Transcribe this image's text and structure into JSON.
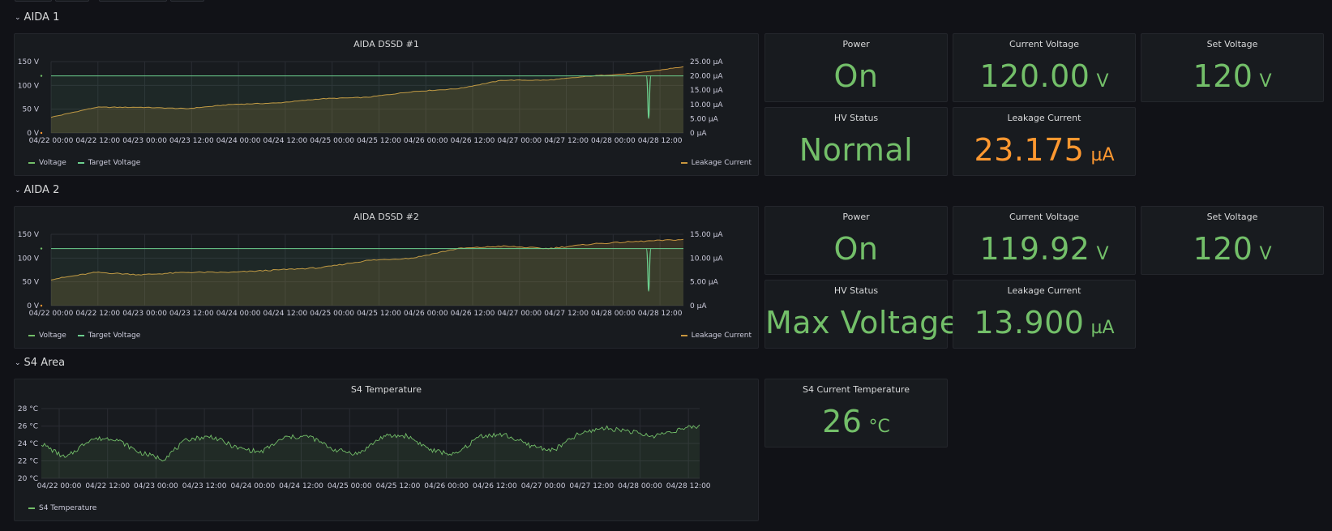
{
  "rows": [
    {
      "title": "AIDA 1"
    },
    {
      "title": "AIDA 2"
    },
    {
      "title": "S4 Area"
    }
  ],
  "x_ticks": [
    "04/22 00:00",
    "04/22 12:00",
    "04/23 00:00",
    "04/23 12:00",
    "04/24 00:00",
    "04/24 12:00",
    "04/25 00:00",
    "04/25 12:00",
    "04/26 00:00",
    "04/26 12:00",
    "04/27 00:00",
    "04/27 12:00",
    "04/28 00:00",
    "04/28 12:00"
  ],
  "aida1": {
    "graph_title": "AIDA DSSD #1",
    "y_left_ticks": [
      "150 V",
      "100 V",
      "50 V",
      "0 V"
    ],
    "y_right_ticks": [
      "25.00 µA",
      "20.00 µA",
      "15.00 µA",
      "10.00 µA",
      "5.00 µA",
      "0 µA"
    ],
    "legend": {
      "voltage": "Voltage",
      "target": "Target Voltage",
      "leakage": "Leakage Current"
    },
    "power": {
      "title": "Power",
      "value": "On"
    },
    "current_voltage": {
      "title": "Current Voltage",
      "value": "120.00",
      "unit": "V"
    },
    "set_voltage": {
      "title": "Set Voltage",
      "value": "120",
      "unit": "V"
    },
    "hv_status": {
      "title": "HV Status",
      "value": "Normal"
    },
    "leakage_current": {
      "title": "Leakage Current",
      "value": "23.175",
      "unit": "µA"
    }
  },
  "aida2": {
    "graph_title": "AIDA DSSD #2",
    "y_left_ticks": [
      "150 V",
      "100 V",
      "50 V",
      "0 V"
    ],
    "y_right_ticks": [
      "15.00 µA",
      "10.00 µA",
      "5.00 µA",
      "0 µA"
    ],
    "legend": {
      "voltage": "Voltage",
      "target": "Target Voltage",
      "leakage": "Leakage Current"
    },
    "power": {
      "title": "Power",
      "value": "On"
    },
    "current_voltage": {
      "title": "Current Voltage",
      "value": "119.92",
      "unit": "V"
    },
    "set_voltage": {
      "title": "Set Voltage",
      "value": "120",
      "unit": "V"
    },
    "hv_status": {
      "title": "HV Status",
      "value": "Max Voltage"
    },
    "leakage_current": {
      "title": "Leakage Current",
      "value": "13.900",
      "unit": "µA"
    }
  },
  "s4": {
    "graph_title": "S4 Temperature",
    "y_ticks": [
      "28 °C",
      "26 °C",
      "24 °C",
      "22 °C",
      "20 °C"
    ],
    "legend": {
      "temperature": "S4 Temperature"
    },
    "current_temp": {
      "title": "S4 Current Temperature",
      "value": "26",
      "unit": "°C"
    }
  },
  "colors": {
    "green": "#73bf69",
    "orange": "#ff9830",
    "target": "#6ccf8e",
    "leak": "#c8963e",
    "panel_bg": "#181b1f",
    "page_bg": "#111217"
  },
  "chart_data": [
    {
      "type": "line",
      "title": "AIDA DSSD #1",
      "x": [
        "04/22 00:00",
        "04/22 12:00",
        "04/23 00:00",
        "04/23 12:00",
        "04/24 00:00",
        "04/24 12:00",
        "04/25 00:00",
        "04/25 12:00",
        "04/26 00:00",
        "04/26 12:00",
        "04/27 00:00",
        "04/27 12:00",
        "04/28 00:00",
        "04/28 12:00",
        "04/28 18:00"
      ],
      "ylim_left": [
        0,
        150
      ],
      "ylim_right": [
        0,
        25
      ],
      "series": [
        {
          "name": "Target Voltage",
          "axis": "left",
          "values": [
            120,
            120,
            120,
            120,
            120,
            120,
            120,
            120,
            120,
            120,
            120,
            120,
            120,
            120,
            120
          ]
        },
        {
          "name": "Voltage",
          "axis": "left",
          "values": [
            120,
            120,
            120,
            120,
            120,
            120,
            120,
            120,
            120,
            120,
            120,
            120,
            120,
            120,
            120
          ]
        },
        {
          "name": "Leakage Current",
          "axis": "right",
          "values": [
            5.5,
            9.0,
            9.0,
            8.5,
            10.0,
            10.5,
            12.0,
            12.5,
            14.5,
            15.5,
            18.5,
            18.5,
            20.0,
            21.0,
            23.2
          ]
        }
      ]
    },
    {
      "type": "line",
      "title": "AIDA DSSD #2",
      "x": [
        "04/22 00:00",
        "04/22 12:00",
        "04/23 00:00",
        "04/23 12:00",
        "04/24 00:00",
        "04/24 12:00",
        "04/25 00:00",
        "04/25 12:00",
        "04/26 00:00",
        "04/26 12:00",
        "04/27 00:00",
        "04/27 12:00",
        "04/28 00:00",
        "04/28 12:00",
        "04/28 18:00"
      ],
      "ylim_left": [
        0,
        150
      ],
      "ylim_right": [
        0,
        15
      ],
      "series": [
        {
          "name": "Target Voltage",
          "axis": "left",
          "values": [
            120,
            120,
            120,
            120,
            120,
            120,
            120,
            120,
            120,
            120,
            120,
            120,
            120,
            120,
            120
          ]
        },
        {
          "name": "Voltage",
          "axis": "left",
          "values": [
            120,
            120,
            120,
            120,
            120,
            120,
            120,
            120,
            120,
            120,
            120,
            120,
            120,
            120,
            120
          ]
        },
        {
          "name": "Leakage Current",
          "axis": "right",
          "values": [
            5.5,
            7.0,
            6.5,
            7.0,
            7.0,
            7.5,
            8.0,
            9.5,
            10.0,
            12.0,
            12.5,
            12.0,
            13.0,
            13.5,
            13.9
          ]
        }
      ]
    },
    {
      "type": "line",
      "title": "S4 Temperature",
      "x": [
        "04/22 00:00",
        "04/22 06:00",
        "04/22 12:00",
        "04/22 18:00",
        "04/23 00:00",
        "04/23 06:00",
        "04/23 12:00",
        "04/23 18:00",
        "04/24 00:00",
        "04/24 06:00",
        "04/24 12:00",
        "04/24 18:00",
        "04/25 00:00",
        "04/25 06:00",
        "04/25 12:00",
        "04/25 18:00",
        "04/26 00:00",
        "04/26 06:00",
        "04/26 12:00",
        "04/26 18:00",
        "04/27 00:00",
        "04/27 06:00",
        "04/27 12:00",
        "04/27 18:00",
        "04/28 00:00",
        "04/28 06:00",
        "04/28 12:00",
        "04/28 18:00"
      ],
      "ylim": [
        20,
        28
      ],
      "series": [
        {
          "name": "S4 Temperature",
          "values": [
            24.0,
            22.3,
            24.5,
            24.6,
            23.0,
            22.2,
            24.5,
            24.8,
            23.5,
            23.0,
            24.7,
            24.8,
            23.3,
            22.8,
            24.8,
            24.9,
            23.2,
            22.7,
            24.9,
            25.0,
            23.8,
            23.2,
            25.0,
            25.8,
            25.5,
            24.8,
            25.5,
            26.0
          ]
        }
      ]
    }
  ]
}
